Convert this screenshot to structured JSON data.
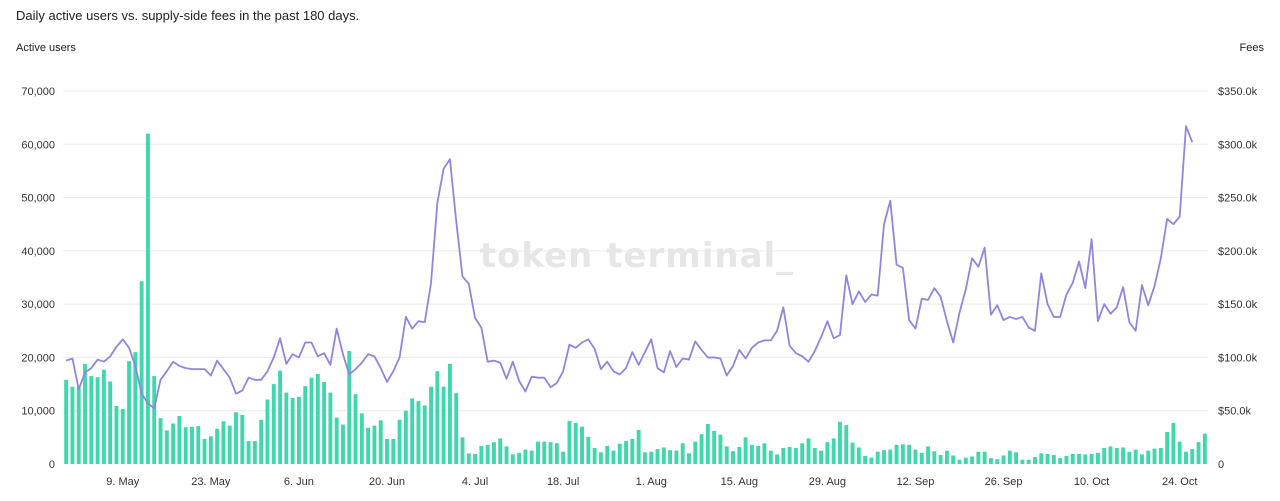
{
  "header": {
    "title": "Daily active users vs. supply-side fees in the past 180 days.",
    "left_axis_title": "Active users",
    "right_axis_title": "Fees",
    "watermark": "token terminal_"
  },
  "chart_data": {
    "type": "bar+line",
    "x_tick_labels": [
      "9. May",
      "23. May",
      "6. Jun",
      "20. Jun",
      "4. Jul",
      "18. Jul",
      "1. Aug",
      "15. Aug",
      "29. Aug",
      "12. Sep",
      "26. Sep",
      "10. Oct",
      "24. Oct"
    ],
    "y_left": {
      "label": "Active users",
      "ylim": [
        0,
        70000
      ],
      "ticks": [
        "0",
        "10,000",
        "20,000",
        "30,000",
        "40,000",
        "50,000",
        "60,000",
        "70,000"
      ]
    },
    "y_right": {
      "label": "Fees",
      "ylim": [
        0,
        350000
      ],
      "ticks": [
        "0",
        "$50.0k",
        "$100.0k",
        "$150.0k",
        "$200.0k",
        "$250.0k",
        "$300.0k",
        "$350.0k"
      ]
    },
    "grid": true,
    "colors": {
      "bars": "#3fd8ac",
      "line": "#9085e3",
      "grid": "#ebebeb"
    },
    "series": [
      {
        "name": "Active users",
        "type": "bar",
        "axis": "left",
        "values": [
          15800,
          14500,
          14700,
          18800,
          16500,
          16300,
          17700,
          15500,
          10900,
          10300,
          19300,
          21000,
          34300,
          62000,
          16500,
          8600,
          6300,
          7600,
          9000,
          6900,
          7000,
          7100,
          4700,
          5200,
          6600,
          8000,
          7200,
          9700,
          9200,
          4300,
          4300,
          8300,
          12100,
          15000,
          17500,
          13400,
          12400,
          12600,
          14600,
          16200,
          16900,
          15400,
          13400,
          8700,
          7400,
          21200,
          13100,
          9500,
          6800,
          7200,
          8200,
          4700,
          4700,
          8300,
          10000,
          12300,
          11800,
          11000,
          14500,
          17400,
          14500,
          18800,
          13300,
          5000,
          2000,
          1900,
          3400,
          3600,
          4100,
          4800,
          3300,
          1800,
          2100,
          2700,
          2500,
          4200,
          4200,
          4100,
          3900,
          2300,
          8100,
          7700,
          7000,
          5100,
          3000,
          2200,
          3400,
          2500,
          3800,
          4300,
          4700,
          6400,
          2200,
          2300,
          2800,
          3100,
          2600,
          2500,
          3900,
          2000,
          4200,
          5600,
          7500,
          6200,
          5500,
          3300,
          2400,
          3200,
          5000,
          3600,
          3400,
          3900,
          2500,
          1800,
          3000,
          3200,
          3000,
          3900,
          4800,
          3000,
          2500,
          4100,
          4800,
          7900,
          7300,
          4000,
          3100,
          1500,
          1200,
          2300,
          2600,
          2700,
          3600,
          3700,
          3600,
          2700,
          2100,
          3300,
          2400,
          1700,
          2500,
          1600,
          800,
          1200,
          1400,
          2300,
          2300,
          1100,
          900,
          1600,
          2500,
          2200,
          800,
          800,
          1300,
          2000,
          1900,
          1700,
          1100,
          1500,
          1900,
          1900,
          1800,
          1900,
          2100,
          3000,
          3300,
          3000,
          3100,
          2300,
          2700,
          1800,
          2500,
          2900,
          3000,
          6000,
          7700,
          4200,
          2300,
          2800,
          4100,
          5700
        ]
      },
      {
        "name": "Fees",
        "type": "line",
        "axis": "right",
        "values": [
          97000,
          99000,
          70000,
          86000,
          90000,
          98000,
          96000,
          101000,
          110000,
          117000,
          109000,
          92000,
          66000,
          57000,
          52000,
          79000,
          87000,
          96000,
          92000,
          90000,
          89000,
          89000,
          89000,
          83000,
          97000,
          89000,
          81000,
          66000,
          69000,
          81000,
          79000,
          79000,
          87000,
          100000,
          118000,
          94000,
          103000,
          100000,
          114000,
          114000,
          101000,
          104000,
          93000,
          127000,
          103000,
          84000,
          89000,
          95000,
          103000,
          101000,
          90000,
          77000,
          87000,
          100000,
          138000,
          127000,
          134000,
          133000,
          170000,
          245000,
          277000,
          286000,
          228000,
          176000,
          169000,
          137000,
          128000,
          96000,
          97000,
          95000,
          80000,
          96000,
          78000,
          68000,
          82000,
          81000,
          81000,
          72000,
          76000,
          87000,
          112000,
          109000,
          114000,
          117000,
          108000,
          89000,
          96000,
          87000,
          84000,
          90000,
          105000,
          93000,
          105000,
          117000,
          90000,
          86000,
          106000,
          91000,
          99000,
          98000,
          115000,
          107000,
          100000,
          100000,
          99000,
          83000,
          92000,
          107000,
          99000,
          109000,
          114000,
          116000,
          116000,
          125000,
          147000,
          111000,
          104000,
          101000,
          96000,
          106000,
          119000,
          134000,
          118000,
          121000,
          177000,
          150000,
          162000,
          152000,
          159000,
          158000,
          225000,
          247000,
          187000,
          184000,
          135000,
          127000,
          155000,
          154000,
          165000,
          157000,
          134000,
          114000,
          142000,
          164000,
          193000,
          185000,
          203000,
          140000,
          149000,
          135000,
          138000,
          136000,
          138000,
          128000,
          125000,
          179000,
          150000,
          138000,
          138000,
          159000,
          170000,
          190000,
          165000,
          211000,
          134000,
          150000,
          141000,
          147000,
          166000,
          133000,
          125000,
          168000,
          149000,
          167000,
          193000,
          230000,
          225000,
          232000,
          317000,
          302000
        ]
      }
    ]
  }
}
